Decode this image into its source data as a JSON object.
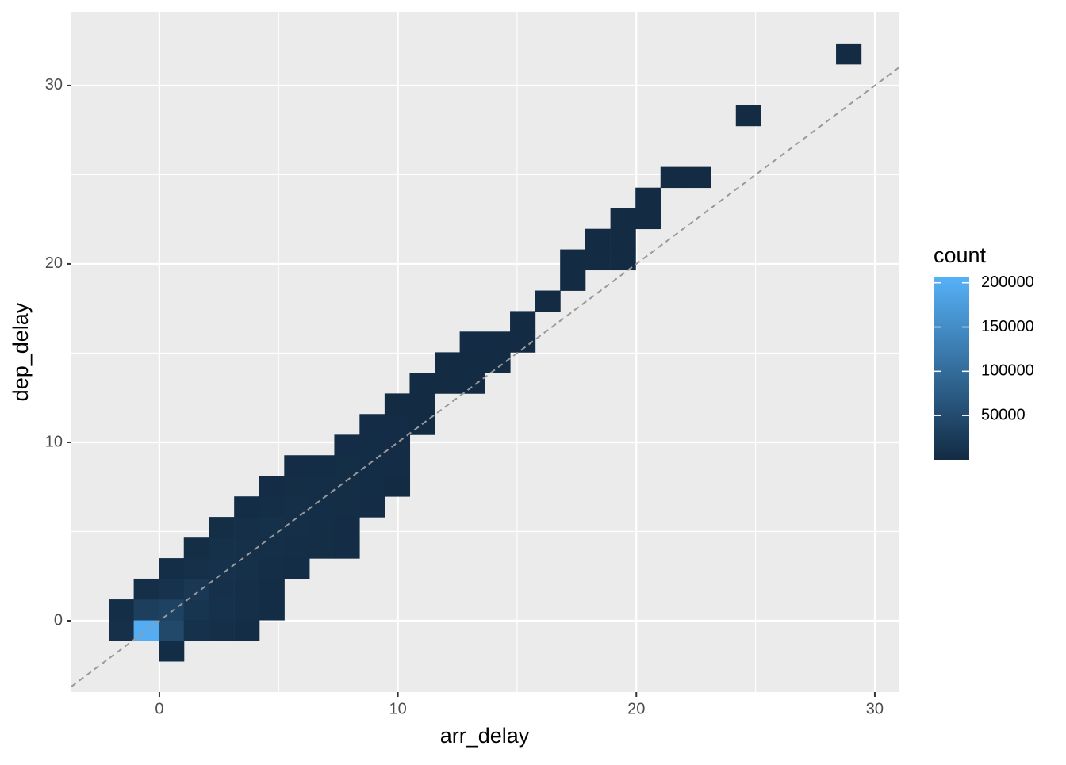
{
  "chart_data": {
    "type": "bin2d",
    "x_label": "arr_delay",
    "y_label": "dep_delay",
    "legend_title": "count",
    "xlim": [
      -3.69,
      31.0
    ],
    "ylim": [
      -4.0,
      34.13
    ],
    "xticks": [
      0,
      10,
      20,
      30
    ],
    "yticks": [
      0,
      10,
      20,
      30
    ],
    "grid": true,
    "minor_grid": true,
    "binwidth": [
      1.052,
      1.154
    ],
    "colorlim": [
      1,
      206000
    ],
    "color_low": "#132B43",
    "color_high": "#56B1F7",
    "colorbar_ticks": [
      50000,
      100000,
      150000,
      200000
    ],
    "reference_line": {
      "slope": 1,
      "intercept": 0,
      "color": "#999999",
      "dashed": true
    },
    "x": [
      0.5,
      -1.6,
      -0.55,
      0.5,
      1.55,
      2.6,
      3.66,
      -1.6,
      -0.55,
      0.5,
      1.55,
      2.6,
      3.66,
      4.71,
      -0.55,
      0.5,
      1.55,
      2.6,
      3.66,
      4.71,
      0.5,
      1.55,
      2.6,
      3.66,
      4.71,
      5.76,
      1.55,
      2.6,
      3.66,
      4.71,
      5.76,
      6.81,
      7.86,
      2.6,
      3.66,
      4.71,
      5.76,
      6.81,
      7.86,
      3.66,
      4.71,
      5.76,
      6.81,
      7.86,
      8.92,
      4.71,
      5.76,
      6.81,
      7.86,
      8.92,
      9.97,
      5.76,
      6.81,
      7.86,
      8.92,
      9.97,
      7.86,
      8.92,
      9.97,
      8.92,
      9.97,
      11.02,
      9.97,
      11.02,
      11.02,
      12.07,
      13.12,
      12.07,
      13.12,
      14.18,
      13.12,
      14.18,
      15.23,
      15.23,
      16.28,
      17.33,
      17.33,
      18.38,
      19.44,
      18.38,
      19.44,
      19.44,
      20.49,
      20.49,
      21.54,
      22.59,
      24.7,
      28.9
    ],
    "y": [
      -1.69,
      -0.53,
      -0.53,
      -0.53,
      -0.53,
      -0.53,
      -0.53,
      0.62,
      0.62,
      0.62,
      0.62,
      0.62,
      0.62,
      0.62,
      1.78,
      1.78,
      1.78,
      1.78,
      1.78,
      1.78,
      2.93,
      2.93,
      2.93,
      2.93,
      2.93,
      2.93,
      4.08,
      4.08,
      4.08,
      4.08,
      4.08,
      4.08,
      4.08,
      5.24,
      5.24,
      5.24,
      5.24,
      5.24,
      5.24,
      6.39,
      6.39,
      6.39,
      6.39,
      6.39,
      6.39,
      7.55,
      7.55,
      7.55,
      7.55,
      7.55,
      7.55,
      8.7,
      8.7,
      8.7,
      8.7,
      8.7,
      9.85,
      9.85,
      9.85,
      11.01,
      11.01,
      11.01,
      12.16,
      12.16,
      13.32,
      13.32,
      13.32,
      14.47,
      14.47,
      14.47,
      15.63,
      15.63,
      15.63,
      16.78,
      17.93,
      19.09,
      20.24,
      20.24,
      20.24,
      21.39,
      21.39,
      22.55,
      22.55,
      23.7,
      24.86,
      24.86,
      28.32,
      31.78
    ],
    "values": [
      3000,
      8000,
      200000,
      45000,
      9000,
      6000,
      3000,
      5000,
      30000,
      35000,
      15000,
      9000,
      6000,
      3000,
      6000,
      10000,
      20000,
      8000,
      6000,
      3000,
      5000,
      8000,
      9000,
      7000,
      5000,
      3000,
      4000,
      7000,
      8000,
      6000,
      5000,
      4000,
      2000,
      4000,
      6000,
      7000,
      6000,
      4000,
      2000,
      3000,
      5000,
      6000,
      5000,
      4000,
      2000,
      2000,
      4000,
      5000,
      4000,
      3000,
      1500,
      2000,
      3000,
      4000,
      3000,
      2000,
      2000,
      3000,
      2000,
      2000,
      2000,
      1000,
      1500,
      1000,
      1000,
      1000,
      500,
      800,
      800,
      400,
      600,
      500,
      300,
      300,
      200,
      150,
      100,
      150,
      100,
      80,
      80,
      50,
      40,
      30,
      20,
      10,
      5,
      2
    ]
  }
}
